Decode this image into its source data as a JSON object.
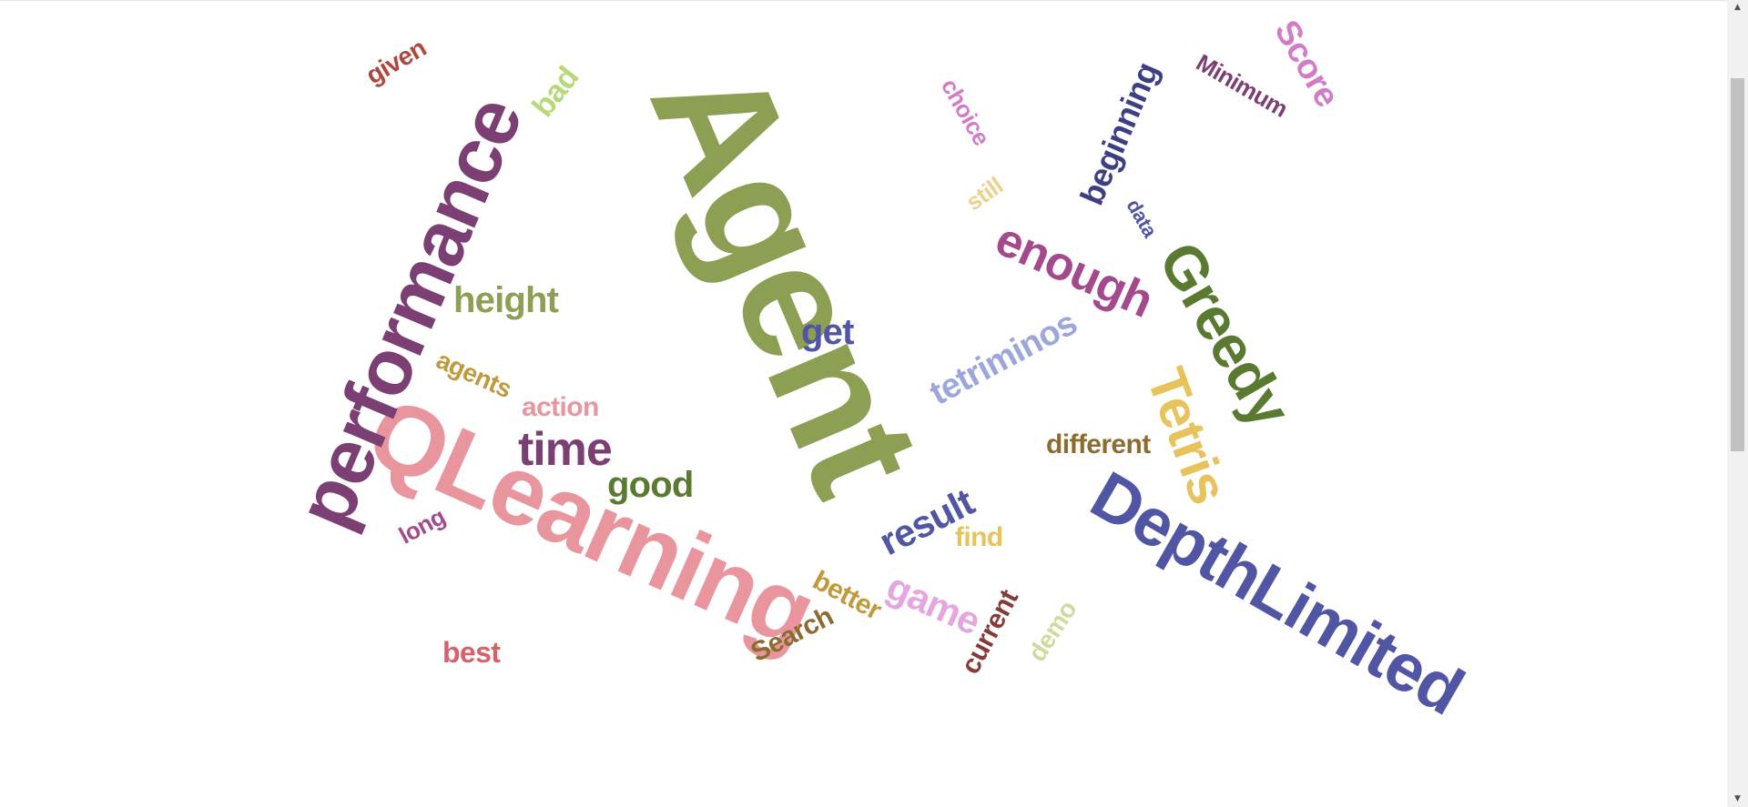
{
  "words": [
    {
      "text": "Agent",
      "color": "#8c9f52"
    },
    {
      "text": "QLearning",
      "color": "#e8959e"
    },
    {
      "text": "performance",
      "color": "#7b3f73"
    },
    {
      "text": "DepthLimited",
      "color": "#5156a4"
    },
    {
      "text": "Greedy",
      "color": "#5a7a32"
    },
    {
      "text": "Tetris",
      "color": "#e8c25a"
    },
    {
      "text": "enough",
      "color": "#a4498c"
    },
    {
      "text": "tetriminos",
      "color": "#9ba6dd"
    },
    {
      "text": "beginning",
      "color": "#3c4083"
    },
    {
      "text": "Minimum",
      "color": "#7b3f73"
    },
    {
      "text": "Score",
      "color": "#d27bc6"
    },
    {
      "text": "choice",
      "color": "#d27bc6"
    },
    {
      "text": "still",
      "color": "#ecd08e"
    },
    {
      "text": "data",
      "color": "#5156a4"
    },
    {
      "text": "height",
      "color": "#8c9f52"
    },
    {
      "text": "get",
      "color": "#5156a4"
    },
    {
      "text": "agents",
      "color": "#c09a3a"
    },
    {
      "text": "action",
      "color": "#e8959e"
    },
    {
      "text": "time",
      "color": "#7b3f73"
    },
    {
      "text": "good",
      "color": "#5a7a32"
    },
    {
      "text": "long",
      "color": "#a4498c"
    },
    {
      "text": "given",
      "color": "#b0473e"
    },
    {
      "text": "bad",
      "color": "#b8d978"
    },
    {
      "text": "result",
      "color": "#5156a4"
    },
    {
      "text": "find",
      "color": "#e8c25a"
    },
    {
      "text": "different",
      "color": "#8c6d31"
    },
    {
      "text": "better",
      "color": "#c09a3a"
    },
    {
      "text": "game",
      "color": "#e5a5e0"
    },
    {
      "text": "Search",
      "color": "#8c6d31"
    },
    {
      "text": "current",
      "color": "#843c39"
    },
    {
      "text": "demo",
      "color": "#cedb9c"
    },
    {
      "text": "best",
      "color": "#d6616b"
    }
  ]
}
